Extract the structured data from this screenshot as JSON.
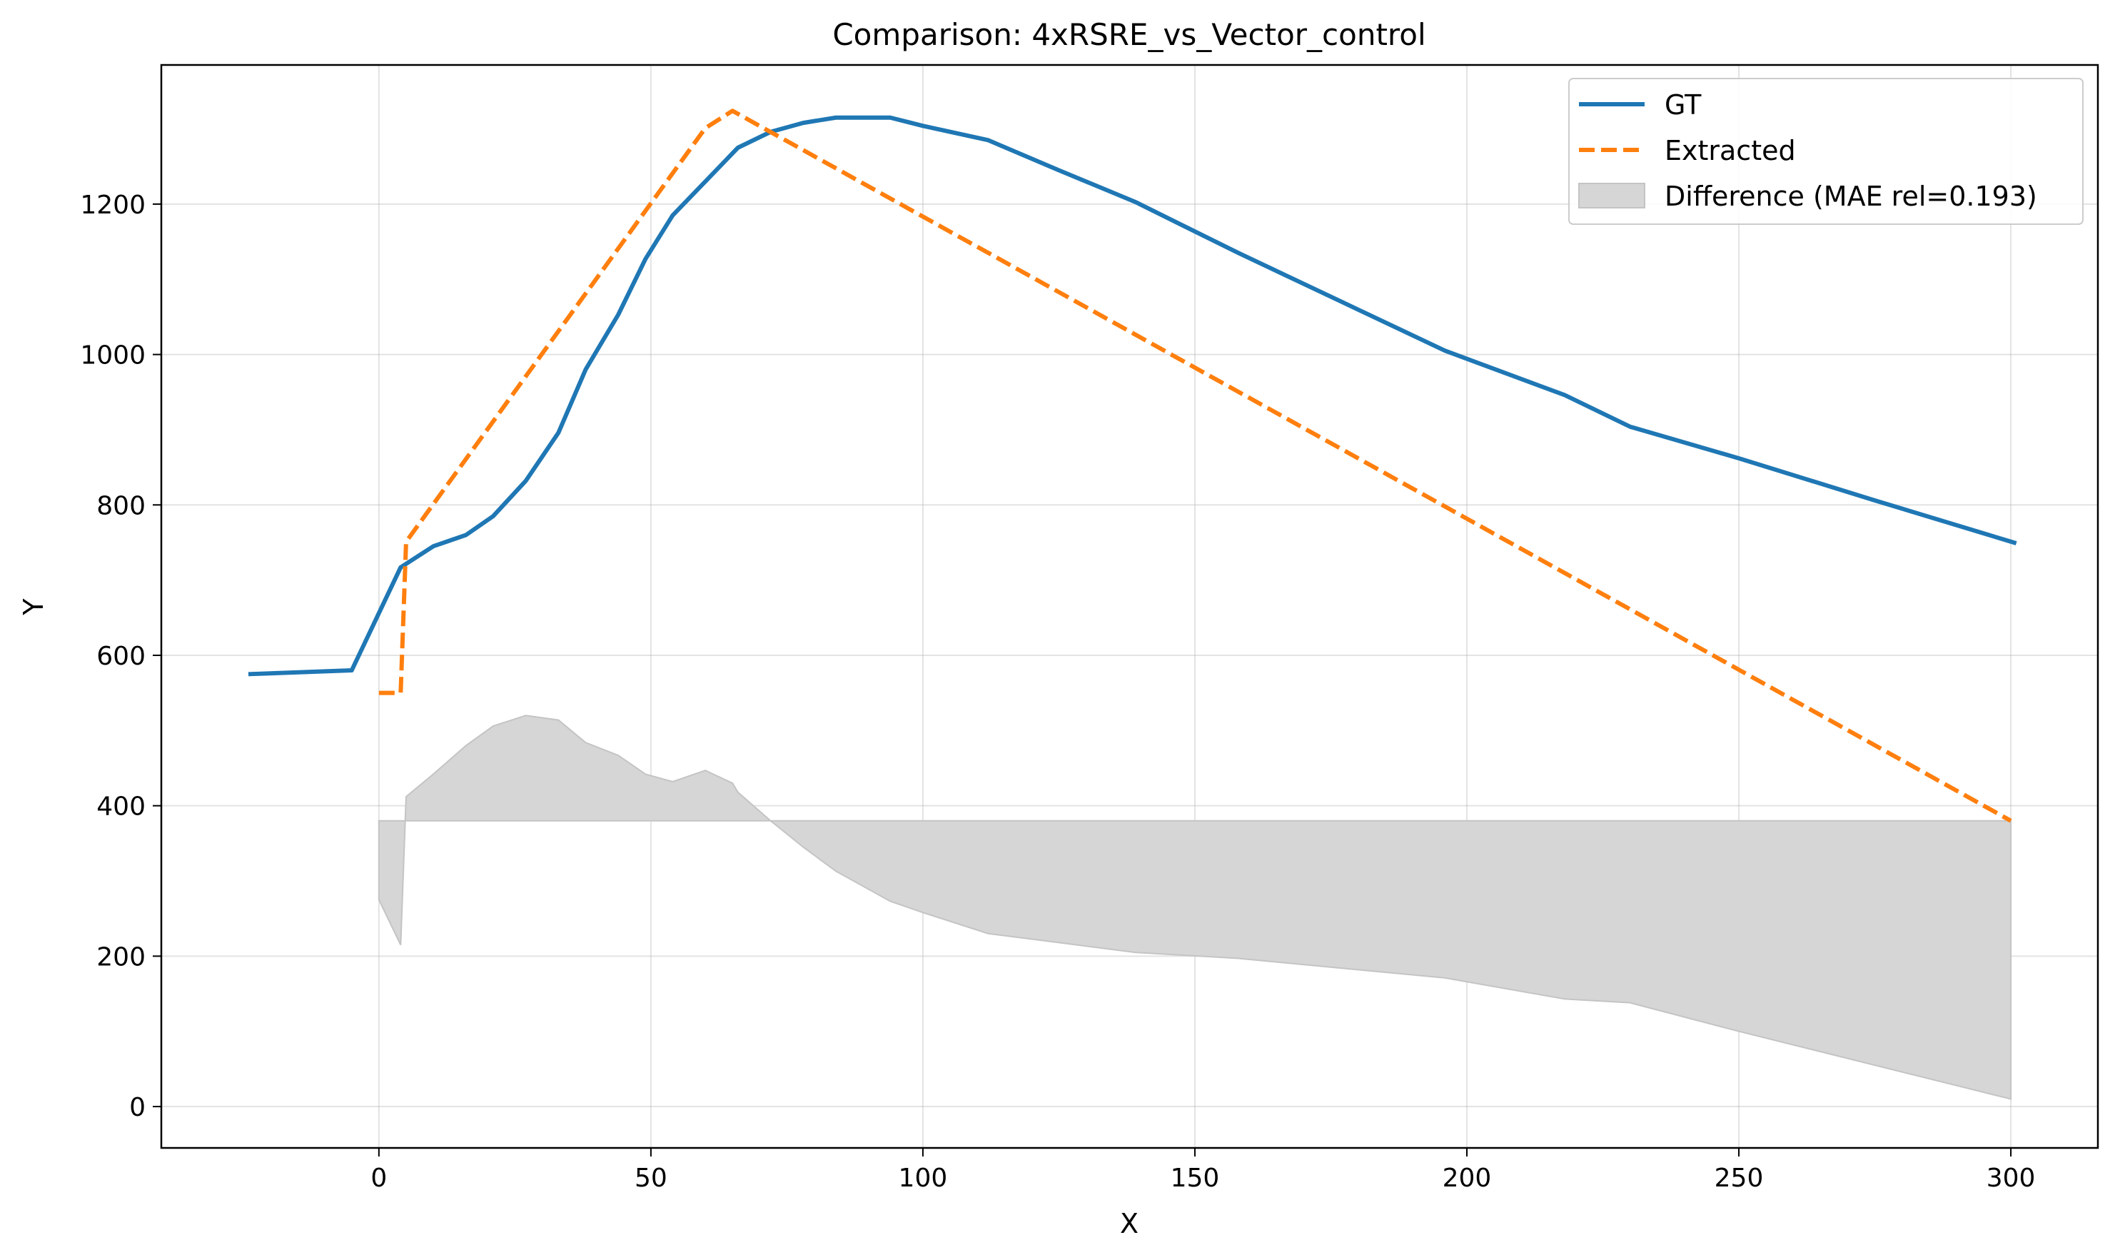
{
  "chart_data": {
    "type": "line",
    "title": "Comparison: 4xRSRE_vs_Vector_control",
    "xlabel": "X",
    "ylabel": "Y",
    "xlim": [
      -40,
      316
    ],
    "ylim": [
      -55,
      1385
    ],
    "xticks": [
      0,
      50,
      100,
      150,
      200,
      250,
      300
    ],
    "yticks": [
      0,
      200,
      400,
      600,
      800,
      1000,
      1200
    ],
    "grid": true,
    "legend_position": "top-right",
    "series": [
      {
        "name": "GT",
        "style": "solid",
        "color": "#1f77b4",
        "x": [
          -24,
          -5,
          4,
          10,
          16,
          21,
          27,
          33,
          38,
          44,
          49,
          54,
          60,
          66,
          72,
          78,
          84,
          94,
          100,
          112,
          125,
          139,
          158,
          177,
          196,
          218,
          230,
          250,
          275,
          301
        ],
        "y": [
          575,
          580,
          717,
          745,
          760,
          785,
          832,
          896,
          980,
          1053,
          1127,
          1185,
          1230,
          1275,
          1296,
          1308,
          1315,
          1315,
          1304,
          1285,
          1245,
          1203,
          1135,
          1070,
          1005,
          946,
          904,
          862,
          806,
          749
        ]
      },
      {
        "name": "Extracted",
        "style": "dashed",
        "color": "#ff7f0e",
        "x": [
          0,
          4,
          5,
          60,
          65,
          300
        ],
        "y": [
          550,
          550,
          751,
          1301,
          1324,
          380
        ]
      },
      {
        "name": "Difference (MAE rel=0.193)",
        "style": "fill",
        "color": "#d6d6d6",
        "baseline": 380,
        "x": [
          0,
          4,
          5,
          10,
          16,
          21,
          27,
          33,
          38,
          44,
          49,
          54,
          60,
          65,
          66,
          72,
          78,
          84,
          94,
          100,
          112,
          125,
          139,
          158,
          177,
          196,
          218,
          230,
          250,
          275,
          300
        ],
        "y": [
          275,
          215,
          412,
          442,
          480,
          506,
          520,
          514,
          484,
          467,
          442,
          432,
          447,
          430,
          418,
          380,
          345,
          313,
          273,
          258,
          230,
          218,
          205,
          197,
          184,
          171,
          143,
          138,
          100,
          55,
          10
        ]
      }
    ]
  }
}
